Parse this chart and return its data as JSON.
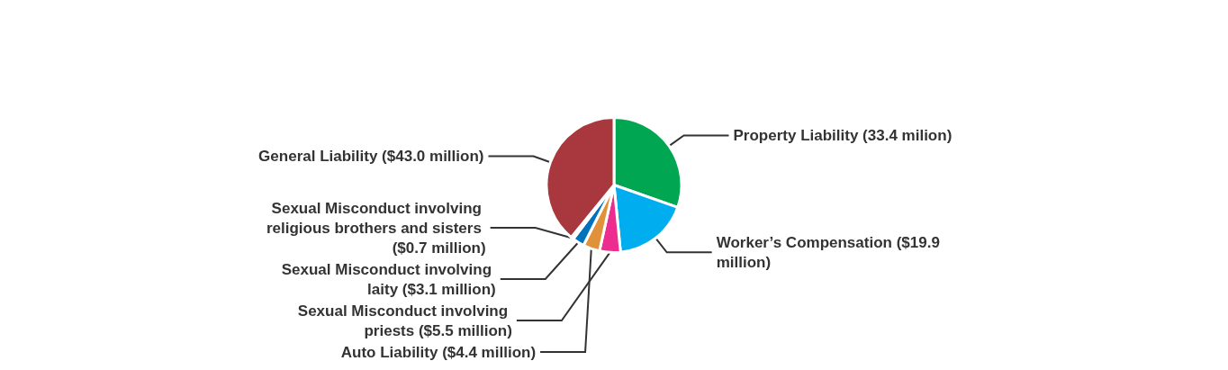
{
  "chart_data": {
    "type": "pie",
    "categories": [
      "Property Liability",
      "Worker’s Compensation",
      "Sexual Misconduct involving priests",
      "Auto Liability",
      "Sexual Misconduct involving laity",
      "Sexual Misconduct involving religious brothers and sisters",
      "General Liability"
    ],
    "values": [
      33.4,
      19.9,
      5.5,
      4.4,
      3.1,
      0.7,
      43.0
    ],
    "value_labels": [
      "(33.4 milion)",
      "($19.9 million)",
      "($5.5 million)",
      "($4.4 million)",
      "($3.1 million)",
      "($0.7 million)",
      "($43.0 million)"
    ],
    "colors": [
      "#00a651",
      "#00aeef",
      "#ec2d8f",
      "#e0923a",
      "#0072bc",
      "#5040a0",
      "#a8373e"
    ],
    "legend": false
  }
}
